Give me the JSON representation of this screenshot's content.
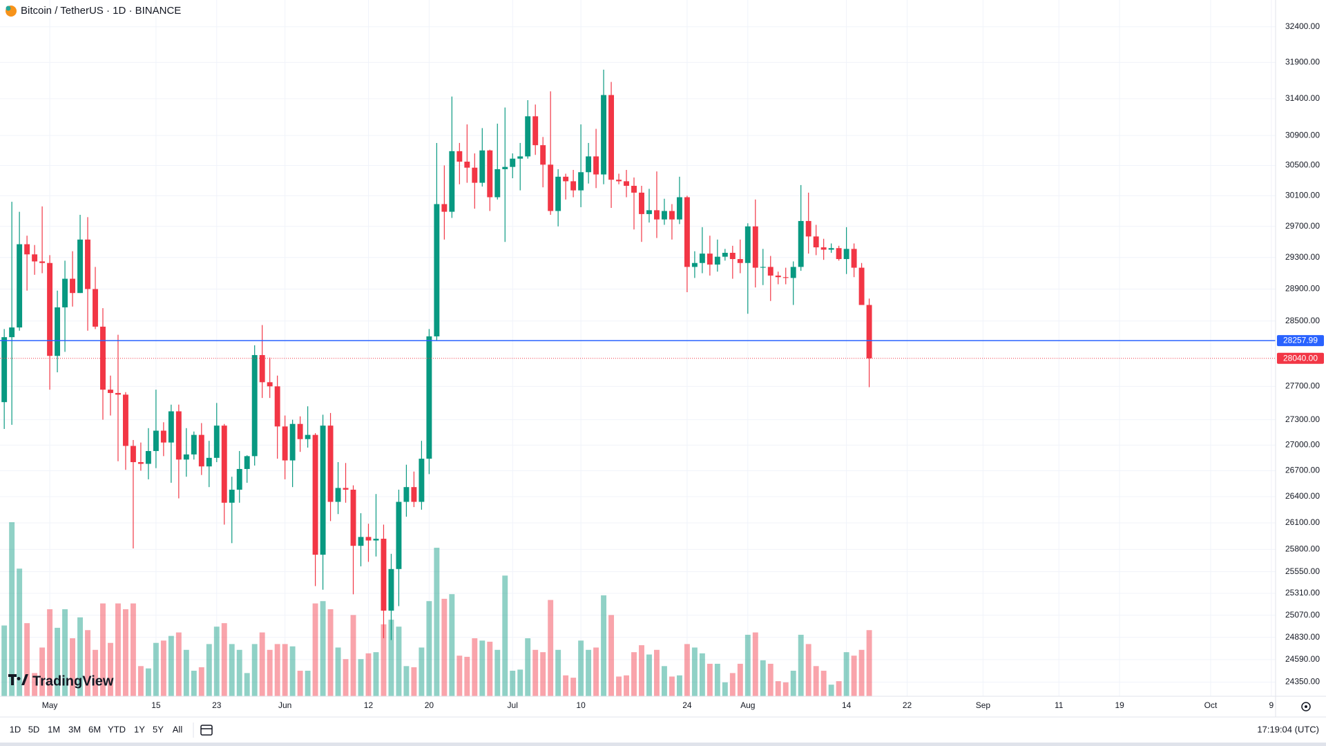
{
  "header": {
    "title": "Bitcoin / TetherUS · 1D · BINANCE"
  },
  "logo": "TradingView",
  "toolbar": {
    "ranges": [
      "1D",
      "5D",
      "1M",
      "3M",
      "6M",
      "YTD",
      "1Y",
      "5Y",
      "All"
    ],
    "clock": "17:19:04 (UTC)"
  },
  "chart_data": {
    "type": "candlestick",
    "log_scale": true,
    "grid": true,
    "up_color": "#089981",
    "down_color": "#f23645",
    "ylim": [
      24200,
      32780
    ],
    "yticks": [
      {
        "value": 32400,
        "label": "32400.00"
      },
      {
        "value": 31900,
        "label": "31900.00"
      },
      {
        "value": 31400,
        "label": "31400.00"
      },
      {
        "value": 30900,
        "label": "30900.00"
      },
      {
        "value": 30500,
        "label": "30500.00"
      },
      {
        "value": 30100,
        "label": "30100.00"
      },
      {
        "value": 29700,
        "label": "29700.00"
      },
      {
        "value": 29300,
        "label": "29300.00"
      },
      {
        "value": 28900,
        "label": "28900.00"
      },
      {
        "value": 28500,
        "label": "28500.00"
      },
      {
        "value": 27700,
        "label": "27700.00"
      },
      {
        "value": 27300,
        "label": "27300.00"
      },
      {
        "value": 27000,
        "label": "27000.00"
      },
      {
        "value": 26700,
        "label": "26700.00"
      },
      {
        "value": 26400,
        "label": "26400.00"
      },
      {
        "value": 26100,
        "label": "26100.00"
      },
      {
        "value": 25800,
        "label": "25800.00"
      },
      {
        "value": 25550,
        "label": "25550.00"
      },
      {
        "value": 25310,
        "label": "25310.00"
      },
      {
        "value": 25070,
        "label": "25070.00"
      },
      {
        "value": 24830,
        "label": "24830.00"
      },
      {
        "value": 24590,
        "label": "24590.00"
      },
      {
        "value": 24350,
        "label": "24350.00"
      }
    ],
    "xlim": [
      -0.56,
      167.56
    ],
    "xticks": [
      {
        "value": 6,
        "label": "May"
      },
      20,
      28,
      {
        "value": 37,
        "label": "Jun"
      },
      48,
      56,
      {
        "value": 67,
        "label": "Jul"
      },
      76,
      90,
      {
        "value": 98,
        "label": "Aug"
      },
      111,
      119,
      {
        "value": 129,
        "label": "Sep"
      },
      139,
      147,
      {
        "value": 159,
        "label": "Oct"
      },
      167
    ],
    "xtick_labels": [
      "May",
      "15",
      "23",
      "Jun",
      "12",
      "20",
      "Jul",
      "10",
      "24",
      "Aug",
      "14",
      "22",
      "Sep",
      "11",
      "19",
      "Oct",
      "9"
    ],
    "lines": [
      {
        "value": 28257.99,
        "color": "#2962ff",
        "style": "solid"
      },
      {
        "value": 28040,
        "label": "28040.00",
        "color": "#f23645",
        "style": "dotted"
      }
    ],
    "open": [
      27510,
      28300,
      28420,
      29470,
      29340,
      29250,
      29230,
      28070,
      28670,
      29030,
      28850,
      29530,
      28900,
      28430,
      27660,
      27620,
      27600,
      26990,
      26800,
      26780,
      26930,
      27170,
      27030,
      27400,
      26830,
      26890,
      27120,
      26750,
      26850,
      27230,
      26330,
      26480,
      26720,
      26870,
      28080,
      27750,
      27700,
      27220,
      26820,
      27250,
      27070,
      27120,
      25740,
      27230,
      26340,
      26500,
      26480,
      25840,
      25940,
      25900,
      25920,
      25120,
      25580,
      26340,
      26510,
      26340,
      26840,
      28310,
      29990,
      29890,
      30690,
      30550,
      30470,
      30270,
      30700,
      30080,
      30450,
      30480,
      30590,
      30620,
      31160,
      30770,
      30510,
      29900,
      30350,
      30290,
      30170,
      30410,
      30620,
      30380,
      31450,
      30310,
      30290,
      30230,
      30140,
      29860,
      29910,
      29790,
      29900,
      29790,
      30080,
      29180,
      29230,
      29350,
      29210,
      29310,
      29360,
      29280,
      29230,
      29700,
      29170,
      29180,
      29070,
      29050,
      29040,
      29180,
      29770,
      29570,
      29430,
      29400,
      29420,
      29280,
      29410,
      29170,
      28700
    ],
    "high": [
      28400,
      30020,
      29890,
      29580,
      29460,
      29960,
      29330,
      28880,
      29260,
      29380,
      29850,
      29820,
      29180,
      28660,
      27830,
      28330,
      27630,
      27060,
      27030,
      27200,
      27660,
      27270,
      27480,
      27480,
      27200,
      27160,
      27260,
      27050,
      27500,
      27250,
      26630,
      26930,
      26880,
      28200,
      28450,
      28050,
      27830,
      27350,
      27300,
      27340,
      27460,
      27140,
      27360,
      27380,
      26800,
      26790,
      26530,
      26210,
      26090,
      26430,
      26080,
      25750,
      26480,
      26770,
      26690,
      27050,
      28400,
      30800,
      30500,
      31430,
      30800,
      31050,
      30660,
      31000,
      30710,
      31060,
      31280,
      30660,
      30800,
      31380,
      31320,
      30880,
      31500,
      30450,
      30390,
      30440,
      31050,
      30800,
      30990,
      31800,
      31630,
      30390,
      30440,
      30340,
      30230,
      30190,
      30420,
      30060,
      29990,
      30350,
      30100,
      29380,
      29690,
      29580,
      29530,
      29410,
      29450,
      29530,
      29740,
      30050,
      29410,
      29320,
      29120,
      29170,
      29250,
      30240,
      30140,
      29720,
      29540,
      29480,
      29450,
      29690,
      29480,
      29230,
      28780
    ],
    "low": [
      27190,
      27240,
      28380,
      28880,
      29080,
      29100,
      27660,
      27870,
      28120,
      28680,
      28850,
      28380,
      28400,
      27300,
      27350,
      26810,
      26710,
      25810,
      26700,
      26600,
      26730,
      26870,
      26560,
      26380,
      26630,
      26830,
      26650,
      26510,
      26800,
      26080,
      25870,
      26330,
      26560,
      26760,
      27560,
      27560,
      26840,
      26600,
      26510,
      26920,
      26970,
      25390,
      25350,
      26120,
      26200,
      26330,
      25300,
      25610,
      25660,
      25720,
      24820,
      24800,
      25170,
      26170,
      26280,
      26250,
      26660,
      28260,
      29530,
      29810,
      30250,
      30270,
      29930,
      30220,
      29900,
      30050,
      29500,
      30330,
      30170,
      30590,
      30640,
      30210,
      29850,
      29700,
      30050,
      30080,
      29950,
      30260,
      30200,
      30250,
      29940,
      30250,
      30080,
      29660,
      29500,
      29750,
      29550,
      29720,
      29530,
      29730,
      28860,
      29040,
      29100,
      29070,
      29120,
      29260,
      29030,
      29100,
      28590,
      28920,
      28950,
      28750,
      28960,
      28960,
      28700,
      29130,
      29350,
      29330,
      29270,
      29360,
      29260,
      29090,
      29050,
      28700,
      27690
    ],
    "close": [
      28300,
      28420,
      29470,
      29340,
      29250,
      29230,
      28070,
      28670,
      29030,
      28850,
      29530,
      28900,
      28430,
      27660,
      27620,
      27600,
      26990,
      26800,
      26780,
      26930,
      27170,
      27030,
      27400,
      26830,
      26890,
      27120,
      26750,
      26850,
      27230,
      26330,
      26480,
      26720,
      26870,
      28080,
      27750,
      27700,
      27220,
      26820,
      27250,
      27070,
      27120,
      25740,
      27230,
      26340,
      26500,
      26480,
      25840,
      25940,
      25900,
      25920,
      25120,
      25580,
      26340,
      26510,
      26340,
      26840,
      28310,
      29990,
      29890,
      30690,
      30550,
      30470,
      30270,
      30700,
      30080,
      30450,
      30480,
      30590,
      30620,
      31160,
      30770,
      30510,
      29900,
      30350,
      30290,
      30170,
      30410,
      30620,
      30380,
      31450,
      30310,
      30290,
      30230,
      30140,
      29860,
      29910,
      29790,
      29900,
      29790,
      30080,
      29180,
      29230,
      29350,
      29210,
      29310,
      29360,
      29280,
      29230,
      29700,
      29170,
      29180,
      29070,
      29050,
      29040,
      29180,
      29770,
      29570,
      29430,
      29400,
      29420,
      29280,
      29410,
      29170,
      28700,
      28040
    ],
    "volume": [
      61,
      150,
      110,
      63,
      20,
      42,
      75,
      59,
      75,
      50,
      68,
      57,
      40,
      80,
      46,
      80,
      75,
      80,
      26,
      24,
      46,
      48,
      52,
      55,
      40,
      22,
      25,
      45,
      60,
      63,
      45,
      40,
      20,
      45,
      55,
      40,
      45,
      45,
      43,
      22,
      22,
      80,
      82,
      75,
      42,
      32,
      70,
      32,
      37,
      38,
      62,
      66,
      60,
      26,
      25,
      42,
      82,
      128,
      84,
      88,
      35,
      34,
      50,
      48,
      47,
      40,
      104,
      22,
      23,
      50,
      40,
      38,
      83,
      40,
      18,
      16,
      48,
      40,
      42,
      87,
      70,
      17,
      18,
      38,
      44,
      36,
      40,
      26,
      17,
      18,
      45,
      42,
      37,
      28,
      28,
      12,
      20,
      28,
      53,
      55,
      31,
      28,
      13,
      12,
      22,
      53,
      45,
      26,
      22,
      10,
      13,
      38,
      35,
      40,
      57
    ]
  }
}
